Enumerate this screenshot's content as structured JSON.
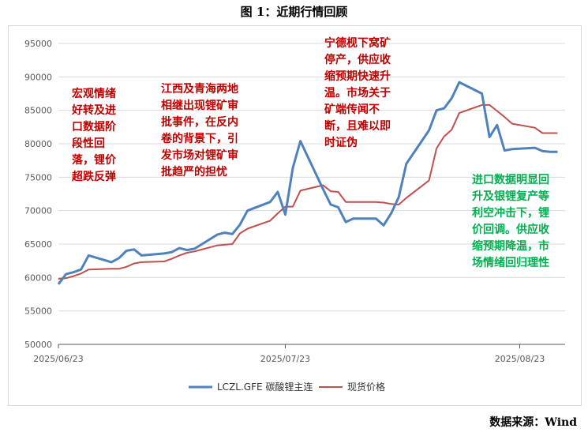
{
  "figure": {
    "title": "图 1：近期行情回顾",
    "source": "数据来源：Wind"
  },
  "annotations": [
    {
      "id": "macro",
      "color": "red",
      "lines": [
        "宏观情绪",
        "好转及进",
        "口数据阶",
        "段性回",
        "落，锂价",
        "超跌反弹"
      ]
    },
    {
      "id": "jiangxi",
      "color": "red",
      "lines": [
        "江西及青海两地",
        "相继出现锂矿审",
        "批事件，在反内",
        "卷的背景下，引",
        "发市场对锂矿审",
        "批趋严的担忧"
      ]
    },
    {
      "id": "catl",
      "color": "red",
      "lines": [
        "宁德枧下窝矿",
        "停产，供应收",
        "缩预期快速升",
        "温。市场关于",
        "矿端传闻不",
        "断，且难以即",
        "时证伪"
      ]
    },
    {
      "id": "import",
      "color": "green",
      "lines": [
        "进口数据明显回",
        "升及银锂复产等",
        "利空冲击下，锂",
        "价回调。供应收",
        "缩预期降温，市",
        "场情绪回归理性"
      ]
    }
  ],
  "chart_data": {
    "type": "line",
    "title": "",
    "xlabel": "",
    "ylabel": "",
    "ylim": [
      50000,
      95000
    ],
    "yticks": [
      50000,
      55000,
      60000,
      65000,
      70000,
      75000,
      80000,
      85000,
      90000,
      95000
    ],
    "xticks": [
      "2025/06/23",
      "2025/07/23",
      "2025/08/23"
    ],
    "xlim": [
      "2025/06/23",
      "2025/08/29"
    ],
    "grid": true,
    "legend": "bottom",
    "series": [
      {
        "name": "LCZL.GFE 碳酸锂主连",
        "color": "#4f81bd",
        "points": [
          [
            "2025/06/23",
            59000
          ],
          [
            "2025/06/24",
            60500
          ],
          [
            "2025/06/25",
            60800
          ],
          [
            "2025/06/26",
            61200
          ],
          [
            "2025/06/27",
            63300
          ],
          [
            "2025/06/30",
            62300
          ],
          [
            "2025/07/01",
            62900
          ],
          [
            "2025/07/02",
            64000
          ],
          [
            "2025/07/03",
            64200
          ],
          [
            "2025/07/04",
            63300
          ],
          [
            "2025/07/07",
            63600
          ],
          [
            "2025/07/08",
            63800
          ],
          [
            "2025/07/09",
            64400
          ],
          [
            "2025/07/10",
            64100
          ],
          [
            "2025/07/11",
            64300
          ],
          [
            "2025/07/14",
            66400
          ],
          [
            "2025/07/15",
            66700
          ],
          [
            "2025/07/16",
            66500
          ],
          [
            "2025/07/17",
            67900
          ],
          [
            "2025/07/18",
            70000
          ],
          [
            "2025/07/21",
            71300
          ],
          [
            "2025/07/22",
            72800
          ],
          [
            "2025/07/23",
            69400
          ],
          [
            "2025/07/24",
            76400
          ],
          [
            "2025/07/25",
            80400
          ],
          [
            "2025/07/28",
            73200
          ],
          [
            "2025/07/29",
            70900
          ],
          [
            "2025/07/30",
            70500
          ],
          [
            "2025/07/31",
            68300
          ],
          [
            "2025/08/01",
            68800
          ],
          [
            "2025/08/04",
            68800
          ],
          [
            "2025/08/05",
            67800
          ],
          [
            "2025/08/06",
            69600
          ],
          [
            "2025/08/07",
            72000
          ],
          [
            "2025/08/08",
            77000
          ],
          [
            "2025/08/11",
            82000
          ],
          [
            "2025/08/12",
            85000
          ],
          [
            "2025/08/13",
            85300
          ],
          [
            "2025/08/14",
            86800
          ],
          [
            "2025/08/15",
            89200
          ],
          [
            "2025/08/18",
            87500
          ],
          [
            "2025/08/19",
            81000
          ],
          [
            "2025/08/20",
            82800
          ],
          [
            "2025/08/21",
            79000
          ],
          [
            "2025/08/22",
            79200
          ],
          [
            "2025/08/25",
            79400
          ],
          [
            "2025/08/26",
            78900
          ],
          [
            "2025/08/27",
            78800
          ],
          [
            "2025/08/28",
            78800
          ]
        ]
      },
      {
        "name": "现货价格",
        "color": "#c0504d",
        "points": [
          [
            "2025/06/23",
            59800
          ],
          [
            "2025/06/24",
            59900
          ],
          [
            "2025/06/25",
            60200
          ],
          [
            "2025/06/26",
            60600
          ],
          [
            "2025/06/27",
            61200
          ],
          [
            "2025/06/30",
            61300
          ],
          [
            "2025/07/01",
            61300
          ],
          [
            "2025/07/02",
            61600
          ],
          [
            "2025/07/03",
            62100
          ],
          [
            "2025/07/04",
            62300
          ],
          [
            "2025/07/07",
            62400
          ],
          [
            "2025/07/08",
            62800
          ],
          [
            "2025/07/09",
            63300
          ],
          [
            "2025/07/10",
            63700
          ],
          [
            "2025/07/11",
            63900
          ],
          [
            "2025/07/14",
            64800
          ],
          [
            "2025/07/15",
            64900
          ],
          [
            "2025/07/16",
            65000
          ],
          [
            "2025/07/17",
            66600
          ],
          [
            "2025/07/18",
            67300
          ],
          [
            "2025/07/21",
            68500
          ],
          [
            "2025/07/22",
            69600
          ],
          [
            "2025/07/23",
            70600
          ],
          [
            "2025/07/24",
            70600
          ],
          [
            "2025/07/25",
            73000
          ],
          [
            "2025/07/28",
            73800
          ],
          [
            "2025/07/29",
            72900
          ],
          [
            "2025/07/30",
            72800
          ],
          [
            "2025/07/31",
            71300
          ],
          [
            "2025/08/01",
            71300
          ],
          [
            "2025/08/04",
            71300
          ],
          [
            "2025/08/05",
            71200
          ],
          [
            "2025/08/06",
            71000
          ],
          [
            "2025/08/07",
            70900
          ],
          [
            "2025/08/08",
            71900
          ],
          [
            "2025/08/11",
            74500
          ],
          [
            "2025/08/12",
            79300
          ],
          [
            "2025/08/13",
            81100
          ],
          [
            "2025/08/14",
            82100
          ],
          [
            "2025/08/15",
            84600
          ],
          [
            "2025/08/18",
            85800
          ],
          [
            "2025/08/19",
            85800
          ],
          [
            "2025/08/20",
            84900
          ],
          [
            "2025/08/21",
            84000
          ],
          [
            "2025/08/22",
            83000
          ],
          [
            "2025/08/25",
            82400
          ],
          [
            "2025/08/26",
            81600
          ],
          [
            "2025/08/27",
            81600
          ],
          [
            "2025/08/28",
            81600
          ]
        ]
      }
    ]
  }
}
